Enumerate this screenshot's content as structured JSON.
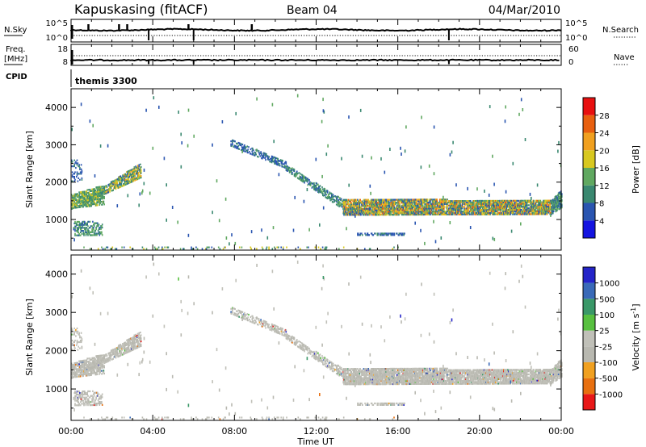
{
  "header": {
    "station": "Kapuskasing (fitACF)",
    "beam": "Beam 04",
    "date": "04/Mar/2010"
  },
  "noise_panel": {
    "left_label": "N.Sky",
    "left_top": "10^5",
    "left_bottom": "10^0",
    "right_top": "10^5",
    "right_bottom": "10^0",
    "right_label": "N.Search"
  },
  "freq_panel": {
    "label_line1": "Freq.",
    "label_line2": "[MHz]",
    "left_top": "18",
    "left_bottom": "8",
    "right_top": "60",
    "right_bottom": "0",
    "right_label": "Nave"
  },
  "cpid_panel": {
    "label": "CPID",
    "program": "themis 3300"
  },
  "x_axis": {
    "label": "Time UT",
    "ticks": [
      "00:00",
      "04:00",
      "08:00",
      "12:00",
      "16:00",
      "20:00",
      "00:00"
    ]
  },
  "power_panel": {
    "ylabel": "Slant Range [km]",
    "yticks": [
      "1000",
      "2000",
      "3000",
      "4000"
    ],
    "colorbar_label": "Power [dB]",
    "colorbar_ticks": [
      "4",
      "8",
      "12",
      "16",
      "20",
      "24",
      "28"
    ]
  },
  "velocity_panel": {
    "ylabel": "Slant Range [km]",
    "yticks": [
      "1000",
      "2000",
      "3000",
      "4000"
    ],
    "colorbar_label": "Velocity [m s",
    "colorbar_exp": "-1",
    "colorbar_close": "]",
    "colorbar_ticks": [
      "1000",
      "500",
      "100",
      "25",
      "-25",
      "-100",
      "-500",
      "-1000"
    ]
  },
  "colors": {
    "power_scale": [
      "#1414e0",
      "#2a55b0",
      "#3a8870",
      "#60a860",
      "#d8c820",
      "#f0a020",
      "#e86010",
      "#e81010"
    ],
    "velocity_scale": [
      "#2424c8",
      "#3a6ab8",
      "#3a9868",
      "#58c040",
      "#c0c0b8",
      "#b8b8b0",
      "#f0a020",
      "#e87010",
      "#e81818"
    ]
  },
  "chart_data": {
    "type": "heatmap",
    "x_range_hours": [
      0,
      24
    ],
    "y_range_km": [
      180,
      4500
    ],
    "bands": [
      {
        "t_start": 0.0,
        "t_end": 3.4,
        "r_start": 1260,
        "r_end": 1290,
        "r_start_end": 2100,
        "r_end_end": 2500,
        "power": [
          6,
          22
        ],
        "density": 0.7
      },
      {
        "t_start": 0.0,
        "t_end": 1.6,
        "r_start": 1280,
        "r_end": 1650,
        "r_start_end": 1380,
        "r_end_end": 1900,
        "power": [
          8,
          18
        ],
        "density": 0.65
      },
      {
        "t_start": 0.1,
        "t_end": 1.5,
        "r_start": 550,
        "r_end": 950,
        "r_start_end": 560,
        "r_end_end": 900,
        "power": [
          6,
          16
        ],
        "density": 0.4
      },
      {
        "t_start": 0.0,
        "t_end": 0.5,
        "r_start": 2000,
        "r_end": 2600,
        "r_start_end": 2000,
        "r_end_end": 2600,
        "power": [
          4,
          10
        ],
        "density": 0.2
      },
      {
        "t_start": 7.8,
        "t_end": 10.5,
        "r_start": 2950,
        "r_end": 3150,
        "r_start_end": 2350,
        "r_end_end": 2550,
        "power": [
          4,
          10
        ],
        "density": 0.4
      },
      {
        "t_start": 10.5,
        "t_end": 13.3,
        "r_start": 2300,
        "r_end": 2450,
        "r_start_end": 1250,
        "r_end_end": 1500,
        "power": [
          6,
          14
        ],
        "density": 0.45
      },
      {
        "t_start": 13.3,
        "t_end": 23.5,
        "r_start": 1100,
        "r_end": 1520,
        "r_start_end": 1120,
        "r_end_end": 1500,
        "power": [
          4,
          26
        ],
        "density": 0.78
      },
      {
        "t_start": 23.5,
        "t_end": 24.0,
        "r_start": 1120,
        "r_end": 1500,
        "r_start_end": 1300,
        "r_end_end": 1780,
        "power": [
          6,
          16
        ],
        "density": 0.7
      },
      {
        "t_start": 14.0,
        "t_end": 16.3,
        "r_start": 560,
        "r_end": 640,
        "r_start_end": 560,
        "r_end_end": 640,
        "power": [
          4,
          10
        ],
        "density": 0.5
      },
      {
        "t_start": 0.5,
        "t_end": 16.0,
        "r_start": 190,
        "r_end": 260,
        "r_start_end": 190,
        "r_end_end": 260,
        "power": [
          4,
          20
        ],
        "density": 0.08
      }
    ],
    "noise_sky_spikes_hours": [
      3.8,
      6.0,
      18.5
    ],
    "freq_mhz_level": 10.5,
    "nave_level": 30
  }
}
